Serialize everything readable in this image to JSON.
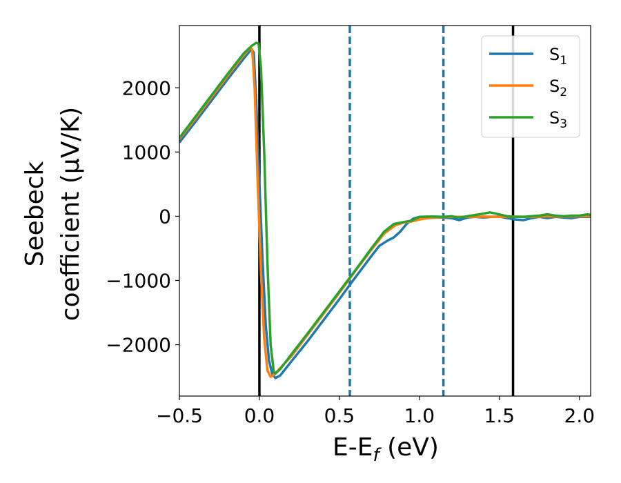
{
  "chart_data": {
    "type": "line",
    "xlabel": "E-E",
    "xlabel_sub": "f",
    "xlabel_unit": " (eV)",
    "ylabel_line1": "Seebeck",
    "ylabel_line2": "coefficient  (μV/K)",
    "xlim": [
      -0.5,
      2.07
    ],
    "ylim": [
      -2800,
      2970
    ],
    "xticks": [
      -0.5,
      0.0,
      0.5,
      1.0,
      1.5,
      2.0
    ],
    "xtick_labels": [
      "−0.5",
      "0.0",
      "0.5",
      "1.0",
      "1.5",
      "2.0"
    ],
    "yticks": [
      -2000,
      -1000,
      0,
      1000,
      2000
    ],
    "ytick_labels": [
      "−2000",
      "−1000",
      "0",
      "1000",
      "2000"
    ],
    "grid": false,
    "legend_position": "top-right",
    "vlines": [
      {
        "x": 0.0,
        "style": "solid",
        "color": "#000000"
      },
      {
        "x": 0.565,
        "style": "dashed",
        "color": "#1f77b4"
      },
      {
        "x": 1.15,
        "style": "dashed",
        "color": "#1f77b4"
      },
      {
        "x": 1.585,
        "style": "solid",
        "color": "#000000"
      }
    ],
    "series": [
      {
        "name": "S",
        "sub": "1",
        "color": "#1f77b4",
        "points": [
          [
            -0.5,
            1150
          ],
          [
            -0.4,
            1470
          ],
          [
            -0.3,
            1800
          ],
          [
            -0.2,
            2130
          ],
          [
            -0.1,
            2450
          ],
          [
            -0.05,
            2600
          ],
          [
            -0.035,
            2550
          ],
          [
            -0.02,
            1800
          ],
          [
            0.0,
            500
          ],
          [
            0.02,
            -700
          ],
          [
            0.04,
            -1700
          ],
          [
            0.06,
            -2250
          ],
          [
            0.08,
            -2450
          ],
          [
            0.1,
            -2520
          ],
          [
            0.13,
            -2480
          ],
          [
            0.2,
            -2260
          ],
          [
            0.3,
            -1950
          ],
          [
            0.4,
            -1620
          ],
          [
            0.5,
            -1290
          ],
          [
            0.6,
            -950
          ],
          [
            0.7,
            -620
          ],
          [
            0.75,
            -460
          ],
          [
            0.8,
            -380
          ],
          [
            0.84,
            -330
          ],
          [
            0.88,
            -240
          ],
          [
            0.92,
            -120
          ],
          [
            0.96,
            -40
          ],
          [
            1.0,
            -10
          ],
          [
            1.05,
            -15
          ],
          [
            1.1,
            -20
          ],
          [
            1.15,
            -20
          ],
          [
            1.2,
            -30
          ],
          [
            1.25,
            -60
          ],
          [
            1.3,
            -20
          ],
          [
            1.35,
            -10
          ],
          [
            1.4,
            -20
          ],
          [
            1.45,
            -10
          ],
          [
            1.5,
            -5
          ],
          [
            1.55,
            -30
          ],
          [
            1.6,
            -50
          ],
          [
            1.65,
            -60
          ],
          [
            1.7,
            -30
          ],
          [
            1.75,
            -10
          ],
          [
            1.8,
            -30
          ],
          [
            1.85,
            -10
          ],
          [
            1.9,
            -20
          ],
          [
            1.95,
            -30
          ],
          [
            2.0,
            -10
          ],
          [
            2.07,
            -10
          ]
        ]
      },
      {
        "name": "S",
        "sub": "2",
        "color": "#ff7f0e",
        "points": [
          [
            -0.5,
            1200
          ],
          [
            -0.4,
            1520
          ],
          [
            -0.3,
            1850
          ],
          [
            -0.2,
            2180
          ],
          [
            -0.1,
            2500
          ],
          [
            -0.06,
            2620
          ],
          [
            -0.045,
            2600
          ],
          [
            -0.03,
            2000
          ],
          [
            -0.01,
            500
          ],
          [
            0.01,
            -900
          ],
          [
            0.03,
            -1900
          ],
          [
            0.05,
            -2400
          ],
          [
            0.07,
            -2500
          ],
          [
            0.09,
            -2470
          ],
          [
            0.2,
            -2180
          ],
          [
            0.3,
            -1850
          ],
          [
            0.4,
            -1520
          ],
          [
            0.5,
            -1190
          ],
          [
            0.6,
            -850
          ],
          [
            0.7,
            -520
          ],
          [
            0.78,
            -270
          ],
          [
            0.85,
            -140
          ],
          [
            0.9,
            -100
          ],
          [
            0.95,
            -80
          ],
          [
            1.0,
            -50
          ],
          [
            1.05,
            -30
          ],
          [
            1.1,
            -20
          ],
          [
            1.2,
            -10
          ],
          [
            1.3,
            -10
          ],
          [
            1.4,
            -5
          ],
          [
            1.5,
            -10
          ],
          [
            1.6,
            -5
          ],
          [
            1.7,
            -10
          ],
          [
            1.8,
            0
          ],
          [
            1.9,
            -5
          ],
          [
            2.0,
            0
          ],
          [
            2.07,
            0
          ]
        ]
      },
      {
        "name": "S",
        "sub": "3",
        "color": "#2ca02c",
        "points": [
          [
            -0.5,
            1220
          ],
          [
            -0.4,
            1550
          ],
          [
            -0.3,
            1880
          ],
          [
            -0.2,
            2210
          ],
          [
            -0.1,
            2530
          ],
          [
            -0.05,
            2650
          ],
          [
            -0.02,
            2700
          ],
          [
            -0.005,
            2690
          ],
          [
            0.01,
            2300
          ],
          [
            0.03,
            1000
          ],
          [
            0.05,
            -700
          ],
          [
            0.07,
            -2000
          ],
          [
            0.09,
            -2420
          ],
          [
            0.1,
            -2450
          ],
          [
            0.13,
            -2380
          ],
          [
            0.2,
            -2150
          ],
          [
            0.3,
            -1830
          ],
          [
            0.4,
            -1500
          ],
          [
            0.5,
            -1170
          ],
          [
            0.6,
            -840
          ],
          [
            0.7,
            -500
          ],
          [
            0.78,
            -240
          ],
          [
            0.84,
            -120
          ],
          [
            0.9,
            -90
          ],
          [
            0.95,
            -70
          ],
          [
            1.0,
            -10
          ],
          [
            1.05,
            -5
          ],
          [
            1.1,
            -5
          ],
          [
            1.15,
            -10
          ],
          [
            1.2,
            0
          ],
          [
            1.25,
            -20
          ],
          [
            1.3,
            0
          ],
          [
            1.35,
            20
          ],
          [
            1.4,
            40
          ],
          [
            1.44,
            60
          ],
          [
            1.48,
            40
          ],
          [
            1.55,
            0
          ],
          [
            1.6,
            -10
          ],
          [
            1.65,
            -10
          ],
          [
            1.7,
            0
          ],
          [
            1.75,
            10
          ],
          [
            1.8,
            30
          ],
          [
            1.85,
            10
          ],
          [
            1.9,
            0
          ],
          [
            1.95,
            10
          ],
          [
            2.0,
            10
          ],
          [
            2.05,
            30
          ],
          [
            2.07,
            20
          ]
        ]
      }
    ]
  }
}
